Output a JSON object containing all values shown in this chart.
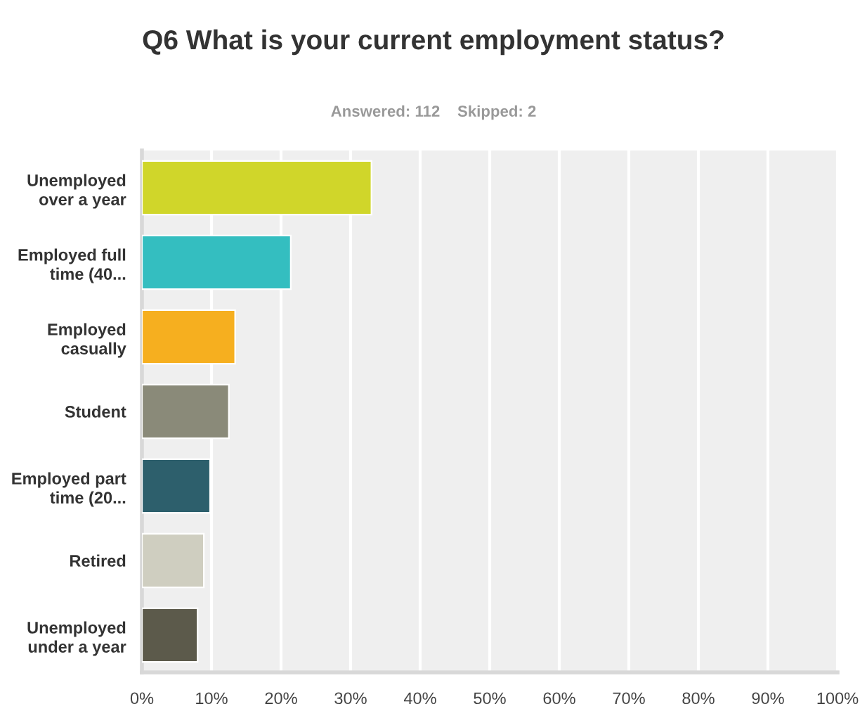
{
  "chart_data": {
    "type": "bar",
    "orientation": "horizontal",
    "title": "Q6 What is your current employment status?",
    "subtitle": "Answered: 112    Skipped: 2",
    "categories": [
      "Unemployed\nover a year",
      "Employed full\ntime (40...",
      "Employed\ncasually",
      "Student",
      "Employed part\ntime (20...",
      "Retired",
      "Unemployed\nunder a year"
    ],
    "values": [
      33,
      21.4,
      13.4,
      12.5,
      9.8,
      8.9,
      8
    ],
    "colors": [
      "#d0d62a",
      "#34bec0",
      "#f6af1f",
      "#8a8a79",
      "#2d5f6c",
      "#cfcec0",
      "#5c5a4b"
    ],
    "xlim": [
      0,
      100
    ],
    "xticks": [
      {
        "value": 0,
        "label": "0%"
      },
      {
        "value": 10,
        "label": "10%"
      },
      {
        "value": 20,
        "label": "20%"
      },
      {
        "value": 30,
        "label": "30%"
      },
      {
        "value": 40,
        "label": "40%"
      },
      {
        "value": 50,
        "label": "50%"
      },
      {
        "value": 60,
        "label": "60%"
      },
      {
        "value": 70,
        "label": "70%"
      },
      {
        "value": 80,
        "label": "80%"
      },
      {
        "value": 90,
        "label": "90%"
      },
      {
        "value": 100,
        "label": "100%"
      }
    ],
    "grid": "x",
    "legend": false
  }
}
